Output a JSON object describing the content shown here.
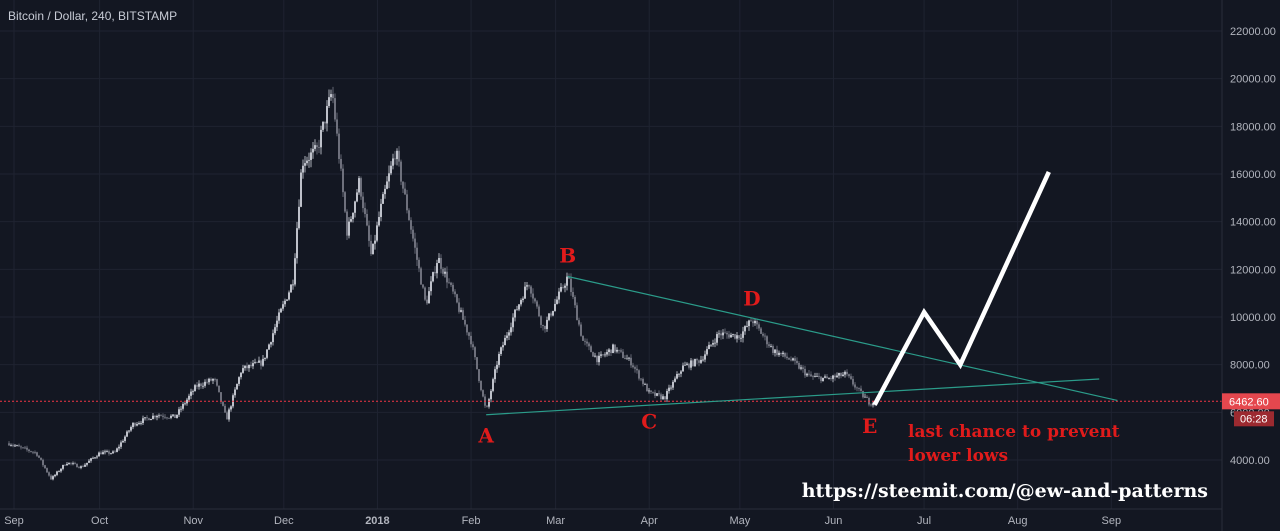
{
  "chart_data": {
    "type": "candlestick",
    "title": "Bitcoin / Dollar, 240, BITSTAMP",
    "x_tick_labels": [
      "Sep",
      "Oct",
      "Nov",
      "Dec",
      "2018",
      "Feb",
      "Mar",
      "Apr",
      "May",
      "Jun",
      "Jul",
      "Aug",
      "Sep"
    ],
    "y_tick_labels": [
      "4000.00",
      "6000.00",
      "8000.00",
      "10000.00",
      "12000.00",
      "14000.00",
      "16000.00",
      "18000.00",
      "20000.00",
      "22000.00"
    ],
    "ylim": [
      2800,
      23000
    ],
    "grid": true,
    "price_series": [
      {
        "date": "2017-09-01",
        "price": 4700
      },
      {
        "date": "2017-09-05",
        "price": 4500
      },
      {
        "date": "2017-09-10",
        "price": 4300
      },
      {
        "date": "2017-09-15",
        "price": 3200
      },
      {
        "date": "2017-09-20",
        "price": 3900
      },
      {
        "date": "2017-09-25",
        "price": 3700
      },
      {
        "date": "2017-10-01",
        "price": 4300
      },
      {
        "date": "2017-10-06",
        "price": 4300
      },
      {
        "date": "2017-10-12",
        "price": 5500
      },
      {
        "date": "2017-10-20",
        "price": 5900
      },
      {
        "date": "2017-10-26",
        "price": 5800
      },
      {
        "date": "2017-11-02",
        "price": 7100
      },
      {
        "date": "2017-11-08",
        "price": 7400
      },
      {
        "date": "2017-11-12",
        "price": 5700
      },
      {
        "date": "2017-11-17",
        "price": 7800
      },
      {
        "date": "2017-11-24",
        "price": 8100
      },
      {
        "date": "2017-11-29",
        "price": 9900
      },
      {
        "date": "2017-12-04",
        "price": 11500
      },
      {
        "date": "2017-12-07",
        "price": 16500
      },
      {
        "date": "2017-12-12",
        "price": 17000
      },
      {
        "date": "2017-12-17",
        "price": 19500
      },
      {
        "date": "2017-12-22",
        "price": 13500
      },
      {
        "date": "2017-12-26",
        "price": 15700
      },
      {
        "date": "2017-12-30",
        "price": 12500
      },
      {
        "date": "2018-01-02",
        "price": 14500
      },
      {
        "date": "2018-01-07",
        "price": 17000
      },
      {
        "date": "2018-01-12",
        "price": 13800
      },
      {
        "date": "2018-01-17",
        "price": 10500
      },
      {
        "date": "2018-01-21",
        "price": 12500
      },
      {
        "date": "2018-01-26",
        "price": 11000
      },
      {
        "date": "2018-02-01",
        "price": 9000
      },
      {
        "date": "2018-02-06",
        "price": 6000
      },
      {
        "date": "2018-02-10",
        "price": 8300
      },
      {
        "date": "2018-02-15",
        "price": 10000
      },
      {
        "date": "2018-02-20",
        "price": 11500
      },
      {
        "date": "2018-02-25",
        "price": 9500
      },
      {
        "date": "2018-03-05",
        "price": 11700
      },
      {
        "date": "2018-03-10",
        "price": 9000
      },
      {
        "date": "2018-03-15",
        "price": 8200
      },
      {
        "date": "2018-03-20",
        "price": 8700
      },
      {
        "date": "2018-03-26",
        "price": 8100
      },
      {
        "date": "2018-04-01",
        "price": 6800
      },
      {
        "date": "2018-04-06",
        "price": 6600
      },
      {
        "date": "2018-04-12",
        "price": 7900
      },
      {
        "date": "2018-04-18",
        "price": 8200
      },
      {
        "date": "2018-04-24",
        "price": 9300
      },
      {
        "date": "2018-05-01",
        "price": 9200
      },
      {
        "date": "2018-05-05",
        "price": 9900
      },
      {
        "date": "2018-05-12",
        "price": 8600
      },
      {
        "date": "2018-05-18",
        "price": 8200
      },
      {
        "date": "2018-05-24",
        "price": 7500
      },
      {
        "date": "2018-05-30",
        "price": 7400
      },
      {
        "date": "2018-06-05",
        "price": 7600
      },
      {
        "date": "2018-06-10",
        "price": 6800
      },
      {
        "date": "2018-06-13",
        "price": 6400
      },
      {
        "date": "2018-06-15",
        "price": 6450
      }
    ],
    "pattern_points": [
      {
        "label": "A",
        "date": "2018-02-06",
        "price": 5900
      },
      {
        "label": "B",
        "date": "2018-03-05",
        "price": 11700
      },
      {
        "label": "C",
        "date": "2018-04-01",
        "price": 6500
      },
      {
        "label": "D",
        "date": "2018-05-05",
        "price": 9900
      },
      {
        "label": "E",
        "date": "2018-06-13",
        "price": 6300
      }
    ],
    "trendlines": [
      {
        "name": "upper",
        "from": {
          "date": "2018-03-05",
          "price": 11700
        },
        "to": {
          "date": "2018-09-03",
          "price": 6500
        }
      },
      {
        "name": "lower",
        "from": {
          "date": "2018-02-06",
          "price": 5900
        },
        "to": {
          "date": "2018-08-28",
          "price": 7400
        }
      }
    ],
    "projection": [
      {
        "date": "2018-06-15",
        "price": 6400
      },
      {
        "date": "2018-07-01",
        "price": 10200
      },
      {
        "date": "2018-07-13",
        "price": 8000
      },
      {
        "date": "2018-08-11",
        "price": 16000
      }
    ],
    "current_price": {
      "value": 6462.6,
      "label": "6462.60",
      "timer": "06:28"
    },
    "annotations": [
      "last chance to prevent",
      "lower lows"
    ],
    "watermark": "https://steemit.com/@ew-and-patterns",
    "colors": {
      "background": "#131722",
      "grid": "#1f2331",
      "axis_text": "#b2b5be",
      "candle_up": "#d1d4dc",
      "candle_down": "#787b86",
      "trendline": "#2b9c8a",
      "projection": "#ffffff",
      "label_red": "#e01b1b",
      "price_line": "#f23645",
      "price_tag": "#e5474e",
      "timer_tag": "#9c2a30"
    }
  }
}
